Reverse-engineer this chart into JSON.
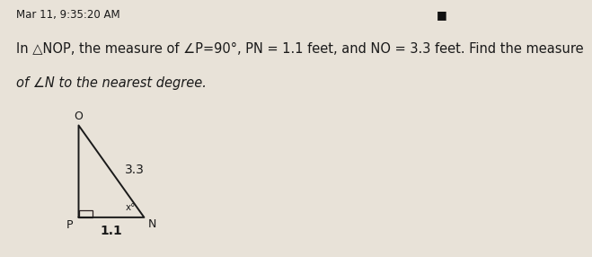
{
  "timestamp": "Mar 11, 9:35:20 AM",
  "problem_text_line1": "In △NOP, the measure of ∠P=90°, PN = 1.1 feet, and NO = 3.3 feet. Find the measure",
  "problem_text_line2": "of ∠N to the nearest degree.",
  "labels": {
    "O": "O",
    "P": "P",
    "N": "N"
  },
  "side_labels": {
    "NO": "3.3",
    "PN": "1.1"
  },
  "angle_label_N": "x°",
  "bg_color": "#e8e2d8",
  "text_color": "#1a1a1a",
  "timestamp_fontsize": 8.5,
  "problem_fontsize": 10.5,
  "triangle_linewidth": 1.4,
  "square_size": 0.055,
  "sep_color": "#aaaaaa",
  "dark_square": "#2a2020"
}
